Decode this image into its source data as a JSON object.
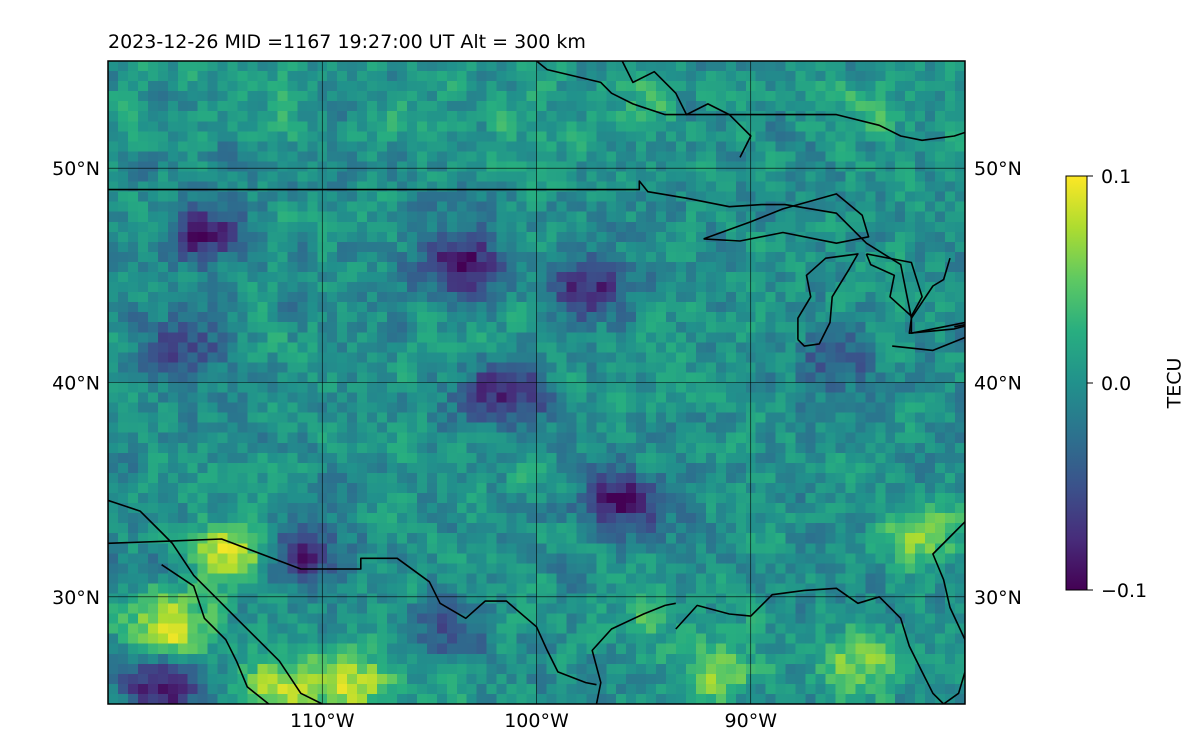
{
  "title": "2023-12-26  MID =1167    19:27:00  UT  Alt = 300 km",
  "chart_data": {
    "type": "heatmap",
    "title": "2023-12-26  MID =1167    19:27:00  UT  Alt = 300 km",
    "projection": "PlateCarree lon/lat map",
    "xlim": [
      -120,
      -80
    ],
    "ylim": [
      25,
      55
    ],
    "xlabel": "",
    "ylabel": "",
    "grid": true,
    "x_ticks": [
      {
        "value": -110,
        "label": "110°W"
      },
      {
        "value": -100,
        "label": "100°W"
      },
      {
        "value": -90,
        "label": "90°W"
      }
    ],
    "y_ticks": [
      {
        "value": 50,
        "label": "50°N"
      },
      {
        "value": 40,
        "label": "40°N"
      },
      {
        "value": 30,
        "label": "30°N"
      }
    ],
    "colormap": "viridis",
    "colorbar": {
      "label": "TECU",
      "vmin": -0.1,
      "vmax": 0.1,
      "ticks": [
        {
          "value": 0.1,
          "label": "0.1"
        },
        {
          "value": 0.0,
          "label": "0.0"
        },
        {
          "value": -0.1,
          "label": "−0.1"
        }
      ]
    },
    "field_summary": {
      "background": 0.0,
      "noise_amplitude": 0.03,
      "features": [
        {
          "lon": -117,
          "lat": 28.5,
          "value": 0.1
        },
        {
          "lon": -117.5,
          "lat": 26,
          "value": -0.09
        },
        {
          "lon": -111,
          "lat": 32,
          "value": -0.08
        },
        {
          "lon": -114,
          "lat": 32,
          "value": 0.09
        },
        {
          "lon": -112,
          "lat": 26,
          "value": 0.07
        },
        {
          "lon": -108.5,
          "lat": 26,
          "value": 0.08
        },
        {
          "lon": -85,
          "lat": 27,
          "value": 0.06
        },
        {
          "lon": -91.5,
          "lat": 26.5,
          "value": 0.06
        },
        {
          "lon": -104,
          "lat": 27.5,
          "value": 0.04
        },
        {
          "lon": -95,
          "lat": 29,
          "value": 0.03
        },
        {
          "lon": -82,
          "lat": 33,
          "value": 0.07
        },
        {
          "lon": -104,
          "lat": 28,
          "value": -0.08
        },
        {
          "lon": -115.5,
          "lat": 47,
          "value": -0.08
        },
        {
          "lon": -103.5,
          "lat": 45.5,
          "value": -0.09
        },
        {
          "lon": -97.5,
          "lat": 44.5,
          "value": -0.08
        },
        {
          "lon": -96,
          "lat": 34.5,
          "value": -0.09
        },
        {
          "lon": -101.5,
          "lat": 39.5,
          "value": -0.09
        },
        {
          "lon": -116.5,
          "lat": 41.5,
          "value": -0.06
        },
        {
          "lon": -86,
          "lat": 41,
          "value": -0.05
        },
        {
          "lon": -95,
          "lat": 53,
          "value": 0.03
        },
        {
          "lon": -85,
          "lat": 53,
          "value": 0.03
        },
        {
          "lon": -112,
          "lat": 53,
          "value": 0.025
        },
        {
          "lon": -106,
          "lat": 52,
          "value": 0.02
        },
        {
          "lon": -100,
          "lat": 52,
          "value": 0.02
        }
      ]
    },
    "coastlines": [
      [
        [
          -100,
          55
        ],
        [
          -99.5,
          54.6
        ],
        [
          -97,
          54
        ],
        [
          -96.5,
          53.5
        ],
        [
          -95.5,
          53
        ],
        [
          -94,
          52.5
        ],
        [
          -92,
          52.5
        ],
        [
          -90,
          52.5
        ],
        [
          -88,
          52.5
        ],
        [
          -86,
          52.5
        ],
        [
          -84,
          52
        ],
        [
          -83,
          51.5
        ],
        [
          -82,
          51.3
        ],
        [
          -80.5,
          51.5
        ],
        [
          -79,
          52
        ],
        [
          -78,
          53
        ],
        [
          -77,
          55
        ]
      ],
      [
        [
          -96,
          55
        ],
        [
          -95.5,
          54
        ],
        [
          -94.5,
          54.5
        ],
        [
          -93.5,
          53.5
        ],
        [
          -93,
          52.5
        ],
        [
          -92,
          53
        ],
        [
          -91,
          52.5
        ],
        [
          -90,
          51.5
        ],
        [
          -90.5,
          50.5
        ]
      ],
      [
        [
          -120,
          34.5
        ],
        [
          -118.5,
          34
        ],
        [
          -117.5,
          33
        ],
        [
          -117,
          32.5
        ],
        [
          -116,
          31
        ],
        [
          -115,
          30
        ],
        [
          -114,
          29
        ],
        [
          -113,
          28
        ],
        [
          -112,
          27
        ],
        [
          -111,
          25.5
        ],
        [
          -110,
          25
        ]
      ],
      [
        [
          -117.5,
          31.5
        ],
        [
          -116,
          30.5
        ],
        [
          -115.5,
          29
        ],
        [
          -114.5,
          28
        ],
        [
          -114,
          27
        ],
        [
          -113.5,
          25.8
        ],
        [
          -112.5,
          25
        ]
      ],
      [
        [
          -93.5,
          28.5
        ],
        [
          -92.5,
          29.6
        ],
        [
          -91,
          29.2
        ],
        [
          -90,
          29.1
        ],
        [
          -89,
          30.1
        ],
        [
          -87.5,
          30.3
        ],
        [
          -86,
          30.4
        ],
        [
          -85,
          29.7
        ],
        [
          -84,
          30
        ],
        [
          -83,
          29
        ],
        [
          -82.6,
          27.7
        ],
        [
          -82,
          26.5
        ],
        [
          -81.5,
          25.5
        ],
        [
          -81,
          25
        ],
        [
          -80.3,
          25.5
        ],
        [
          -80,
          26.5
        ],
        [
          -80,
          28
        ],
        [
          -80.7,
          29.5
        ],
        [
          -81,
          30.8
        ],
        [
          -81.5,
          32
        ],
        [
          -80.5,
          33
        ],
        [
          -80,
          33.5
        ]
      ],
      [
        [
          -97.2,
          25
        ],
        [
          -97,
          26
        ],
        [
          -97.4,
          27.5
        ],
        [
          -96.5,
          28.5
        ],
        [
          -95,
          29.2
        ],
        [
          -94,
          29.6
        ],
        [
          -93.5,
          29.7
        ]
      ]
    ],
    "borders": [
      [
        [
          -120,
          49
        ],
        [
          -95.2,
          49
        ],
        [
          -95.2,
          49.4
        ],
        [
          -94.8,
          48.9
        ],
        [
          -93,
          48.6
        ],
        [
          -91,
          48.2
        ],
        [
          -89.5,
          48.3
        ]
      ],
      [
        [
          -120,
          32.5
        ],
        [
          -117.1,
          32.6
        ],
        [
          -114.7,
          32.7
        ],
        [
          -111,
          31.3
        ],
        [
          -108.2,
          31.3
        ],
        [
          -108.2,
          31.8
        ],
        [
          -106.5,
          31.8
        ],
        [
          -105,
          30.7
        ],
        [
          -104.5,
          29.7
        ],
        [
          -103.3,
          29
        ],
        [
          -102.4,
          29.8
        ],
        [
          -101.4,
          29.8
        ],
        [
          -100,
          28.6
        ],
        [
          -99.5,
          27.5
        ],
        [
          -99,
          26.5
        ],
        [
          -97.7,
          26
        ],
        [
          -97.2,
          25.9
        ]
      ],
      [
        [
          -89.5,
          48.3
        ],
        [
          -88.4,
          48.3
        ],
        [
          -86,
          47.9
        ],
        [
          -84.6,
          46.5
        ],
        [
          -83,
          45.5
        ],
        [
          -82.5,
          43
        ],
        [
          -82.6,
          42.3
        ],
        [
          -80.5,
          42.5
        ],
        [
          -79,
          42.9
        ]
      ]
    ],
    "lakes": [
      [
        [
          -92.2,
          46.7
        ],
        [
          -90,
          47.5
        ],
        [
          -88.5,
          48.1
        ],
        [
          -86,
          48.8
        ],
        [
          -84.8,
          47.8
        ],
        [
          -84.5,
          46.8
        ],
        [
          -86,
          46.5
        ],
        [
          -88.5,
          47
        ],
        [
          -90.5,
          46.6
        ],
        [
          -92.2,
          46.7
        ]
      ],
      [
        [
          -87.8,
          42
        ],
        [
          -87.5,
          41.7
        ],
        [
          -86.8,
          41.8
        ],
        [
          -86.3,
          42.8
        ],
        [
          -86.2,
          44
        ],
        [
          -85.4,
          45.3
        ],
        [
          -85,
          46
        ],
        [
          -86.5,
          45.8
        ],
        [
          -87.4,
          45
        ],
        [
          -87.2,
          44
        ],
        [
          -87.8,
          43
        ],
        [
          -87.8,
          42
        ]
      ],
      [
        [
          -84.6,
          46
        ],
        [
          -82.5,
          45.6
        ],
        [
          -82,
          44
        ],
        [
          -82.5,
          43.1
        ],
        [
          -83.5,
          44
        ],
        [
          -83.3,
          45
        ],
        [
          -84.4,
          45.5
        ],
        [
          -84.6,
          46
        ]
      ],
      [
        [
          -80.7,
          45.8
        ],
        [
          -81,
          44.8
        ],
        [
          -81.5,
          44.5
        ],
        [
          -82.5,
          43
        ],
        [
          -82.5,
          42.3
        ],
        [
          -81,
          42.6
        ],
        [
          -80,
          42.8
        ]
      ],
      [
        [
          -83.4,
          41.7
        ],
        [
          -81.5,
          41.5
        ],
        [
          -80,
          42.1
        ],
        [
          -79,
          42.9
        ],
        [
          -80.5,
          42.6
        ]
      ],
      [
        [
          -79.8,
          43.3
        ],
        [
          -79,
          43.7
        ],
        [
          -78,
          43.9
        ],
        [
          -77,
          44
        ]
      ]
    ]
  }
}
